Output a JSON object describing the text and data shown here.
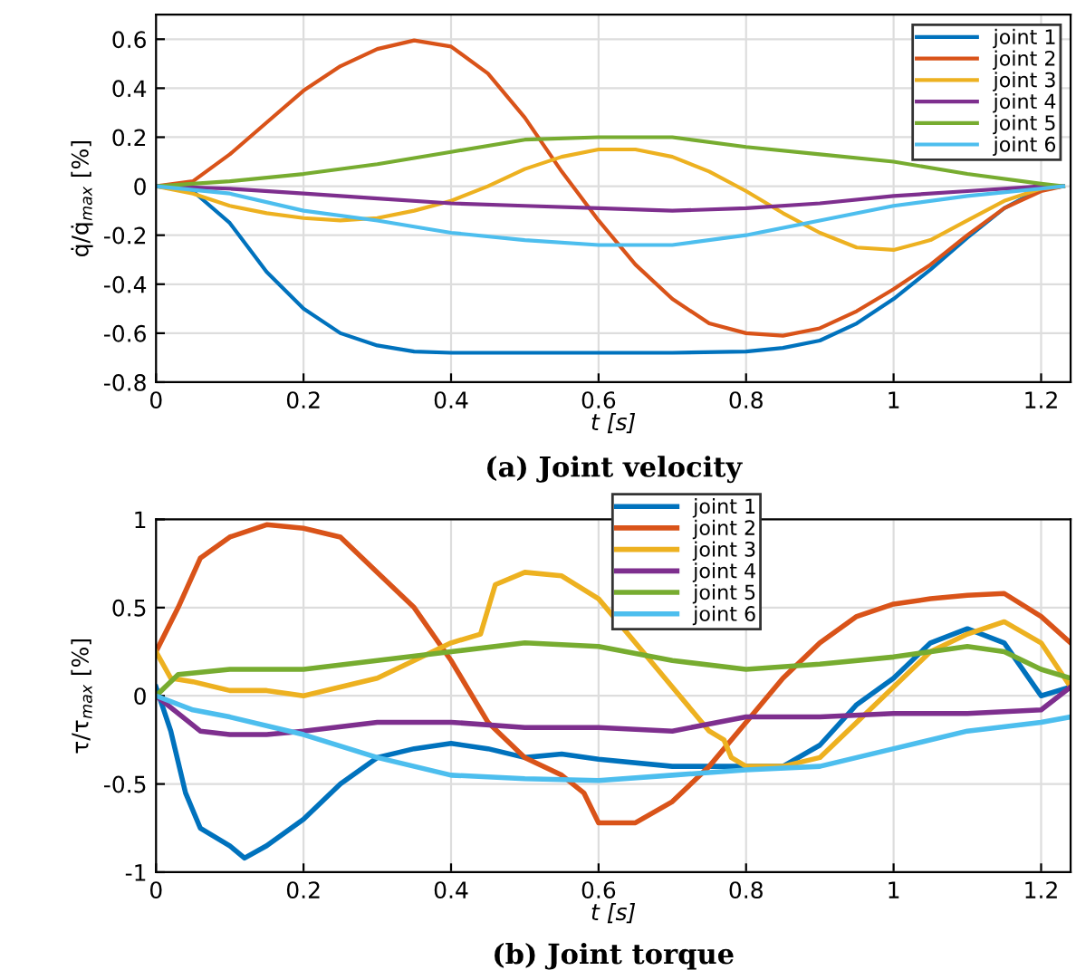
{
  "chart_data": [
    {
      "type": "line",
      "title": "(a) Joint velocity",
      "xlabel": "t [s]",
      "ylabel": "q̇/q̇$_{max}$ [%]",
      "xlim": [
        0,
        1.24
      ],
      "xticks": [
        0,
        0.2,
        0.4,
        0.6,
        0.8,
        1,
        1.2
      ],
      "ylim": [
        -0.8,
        0.7
      ],
      "yticks": [
        -0.8,
        -0.6,
        -0.4,
        -0.2,
        0,
        0.2,
        0.4,
        0.6
      ],
      "grid": true,
      "legend": "top right",
      "line_style": "solid",
      "marker": "none",
      "series": [
        {
          "name": "joint 1",
          "color": "#0072bd",
          "x": [
            0,
            0.05,
            0.1,
            0.15,
            0.2,
            0.25,
            0.3,
            0.35,
            0.4,
            0.5,
            0.6,
            0.7,
            0.8,
            0.85,
            0.9,
            0.95,
            1.0,
            1.05,
            1.1,
            1.15,
            1.2,
            1.23
          ],
          "values": [
            0,
            -0.02,
            -0.15,
            -0.35,
            -0.5,
            -0.6,
            -0.65,
            -0.675,
            -0.68,
            -0.68,
            -0.68,
            -0.68,
            -0.675,
            -0.66,
            -0.63,
            -0.56,
            -0.46,
            -0.34,
            -0.21,
            -0.09,
            -0.01,
            0
          ]
        },
        {
          "name": "joint 2",
          "color": "#d95319",
          "x": [
            0,
            0.05,
            0.1,
            0.15,
            0.2,
            0.25,
            0.3,
            0.35,
            0.4,
            0.45,
            0.5,
            0.55,
            0.6,
            0.65,
            0.7,
            0.75,
            0.8,
            0.85,
            0.9,
            0.95,
            1.0,
            1.05,
            1.1,
            1.15,
            1.2,
            1.23
          ],
          "values": [
            0,
            0.02,
            0.13,
            0.26,
            0.39,
            0.49,
            0.56,
            0.595,
            0.57,
            0.46,
            0.28,
            0.06,
            -0.14,
            -0.32,
            -0.46,
            -0.56,
            -0.6,
            -0.61,
            -0.58,
            -0.51,
            -0.42,
            -0.32,
            -0.2,
            -0.09,
            -0.02,
            0
          ]
        },
        {
          "name": "joint 3",
          "color": "#edb120",
          "x": [
            0,
            0.05,
            0.1,
            0.15,
            0.2,
            0.25,
            0.3,
            0.35,
            0.4,
            0.45,
            0.5,
            0.55,
            0.6,
            0.65,
            0.7,
            0.75,
            0.8,
            0.85,
            0.9,
            0.95,
            1.0,
            1.05,
            1.1,
            1.15,
            1.2,
            1.23
          ],
          "values": [
            0,
            -0.03,
            -0.08,
            -0.11,
            -0.13,
            -0.14,
            -0.13,
            -0.1,
            -0.06,
            0,
            0.07,
            0.12,
            0.15,
            0.15,
            0.12,
            0.06,
            -0.02,
            -0.11,
            -0.19,
            -0.25,
            -0.26,
            -0.22,
            -0.14,
            -0.06,
            -0.01,
            0
          ]
        },
        {
          "name": "joint 4",
          "color": "#7e2f8e",
          "x": [
            0,
            0.1,
            0.2,
            0.3,
            0.4,
            0.5,
            0.6,
            0.7,
            0.8,
            0.9,
            1.0,
            1.1,
            1.2,
            1.23
          ],
          "values": [
            0,
            -0.01,
            -0.03,
            -0.05,
            -0.07,
            -0.08,
            -0.09,
            -0.1,
            -0.09,
            -0.07,
            -0.04,
            -0.02,
            0,
            0
          ]
        },
        {
          "name": "joint 5",
          "color": "#77ac30",
          "x": [
            0,
            0.1,
            0.2,
            0.3,
            0.4,
            0.5,
            0.6,
            0.7,
            0.8,
            0.9,
            1.0,
            1.1,
            1.2,
            1.23
          ],
          "values": [
            0,
            0.02,
            0.05,
            0.09,
            0.14,
            0.19,
            0.2,
            0.2,
            0.16,
            0.13,
            0.1,
            0.05,
            0.01,
            0
          ]
        },
        {
          "name": "joint 6",
          "color": "#4dbeee",
          "x": [
            0,
            0.1,
            0.2,
            0.3,
            0.4,
            0.5,
            0.6,
            0.7,
            0.8,
            0.9,
            1.0,
            1.1,
            1.2,
            1.23
          ],
          "values": [
            0,
            -0.03,
            -0.1,
            -0.14,
            -0.19,
            -0.22,
            -0.24,
            -0.24,
            -0.2,
            -0.14,
            -0.08,
            -0.04,
            -0.01,
            0
          ]
        }
      ]
    },
    {
      "type": "line",
      "title": "(b) Joint torque",
      "xlabel": "t [s]",
      "ylabel": "τ/τ$_{max}$ [%]",
      "xlim": [
        0,
        1.24
      ],
      "xticks": [
        0,
        0.2,
        0.4,
        0.6,
        0.8,
        1,
        1.2
      ],
      "ylim": [
        -1,
        1
      ],
      "yticks": [
        -1,
        -0.5,
        0,
        0.5,
        1
      ],
      "grid": true,
      "legend": "top",
      "line_style": "solid",
      "marker": "none",
      "series": [
        {
          "name": "joint 1",
          "color": "#0072bd",
          "x": [
            0,
            0.02,
            0.04,
            0.06,
            0.1,
            0.12,
            0.15,
            0.2,
            0.25,
            0.3,
            0.35,
            0.4,
            0.45,
            0.5,
            0.55,
            0.6,
            0.7,
            0.8,
            0.85,
            0.9,
            0.95,
            1.0,
            1.05,
            1.1,
            1.15,
            1.2,
            1.24
          ],
          "values": [
            0.05,
            -0.2,
            -0.55,
            -0.75,
            -0.85,
            -0.92,
            -0.85,
            -0.7,
            -0.5,
            -0.35,
            -0.3,
            -0.27,
            -0.3,
            -0.35,
            -0.33,
            -0.36,
            -0.4,
            -0.4,
            -0.4,
            -0.28,
            -0.05,
            0.1,
            0.3,
            0.38,
            0.3,
            0,
            0.05
          ]
        },
        {
          "name": "joint 2",
          "color": "#d95319",
          "x": [
            0,
            0.03,
            0.06,
            0.1,
            0.15,
            0.2,
            0.25,
            0.3,
            0.35,
            0.4,
            0.45,
            0.5,
            0.55,
            0.58,
            0.6,
            0.65,
            0.7,
            0.75,
            0.8,
            0.85,
            0.9,
            0.95,
            1.0,
            1.05,
            1.1,
            1.15,
            1.2,
            1.24
          ],
          "values": [
            0.25,
            0.5,
            0.78,
            0.9,
            0.97,
            0.95,
            0.9,
            0.7,
            0.5,
            0.2,
            -0.15,
            -0.35,
            -0.45,
            -0.55,
            -0.72,
            -0.72,
            -0.6,
            -0.4,
            -0.15,
            0.1,
            0.3,
            0.45,
            0.52,
            0.55,
            0.57,
            0.58,
            0.45,
            0.3
          ]
        },
        {
          "name": "joint 3",
          "color": "#edb120",
          "x": [
            0,
            0.02,
            0.05,
            0.1,
            0.15,
            0.2,
            0.25,
            0.3,
            0.35,
            0.4,
            0.44,
            0.46,
            0.5,
            0.55,
            0.6,
            0.65,
            0.7,
            0.75,
            0.77,
            0.78,
            0.8,
            0.85,
            0.9,
            0.95,
            1.0,
            1.05,
            1.1,
            1.15,
            1.2,
            1.24
          ],
          "values": [
            0.25,
            0.1,
            0.08,
            0.03,
            0.03,
            0,
            0.05,
            0.1,
            0.2,
            0.3,
            0.35,
            0.63,
            0.7,
            0.68,
            0.55,
            0.3,
            0.05,
            -0.2,
            -0.25,
            -0.35,
            -0.4,
            -0.4,
            -0.35,
            -0.15,
            0.05,
            0.25,
            0.35,
            0.42,
            0.3,
            0.05
          ]
        },
        {
          "name": "joint 4",
          "color": "#7e2f8e",
          "x": [
            0,
            0.03,
            0.06,
            0.1,
            0.15,
            0.2,
            0.3,
            0.4,
            0.5,
            0.6,
            0.7,
            0.8,
            0.9,
            1.0,
            1.1,
            1.2,
            1.24
          ],
          "values": [
            0,
            -0.1,
            -0.2,
            -0.22,
            -0.22,
            -0.2,
            -0.15,
            -0.15,
            -0.18,
            -0.18,
            -0.2,
            -0.12,
            -0.12,
            -0.1,
            -0.1,
            -0.08,
            0.05
          ]
        },
        {
          "name": "joint 5",
          "color": "#77ac30",
          "x": [
            0,
            0.03,
            0.1,
            0.2,
            0.3,
            0.4,
            0.5,
            0.6,
            0.7,
            0.8,
            0.9,
            1.0,
            1.1,
            1.15,
            1.2,
            1.24
          ],
          "values": [
            0,
            0.12,
            0.15,
            0.15,
            0.2,
            0.25,
            0.3,
            0.28,
            0.2,
            0.15,
            0.18,
            0.22,
            0.28,
            0.25,
            0.15,
            0.1
          ]
        },
        {
          "name": "joint 6",
          "color": "#4dbeee",
          "x": [
            0,
            0.05,
            0.1,
            0.2,
            0.3,
            0.4,
            0.5,
            0.6,
            0.7,
            0.8,
            0.9,
            1.0,
            1.1,
            1.2,
            1.24
          ],
          "values": [
            0,
            -0.08,
            -0.12,
            -0.22,
            -0.35,
            -0.45,
            -0.47,
            -0.48,
            -0.45,
            -0.42,
            -0.4,
            -0.3,
            -0.2,
            -0.15,
            -0.12
          ]
        }
      ]
    }
  ]
}
